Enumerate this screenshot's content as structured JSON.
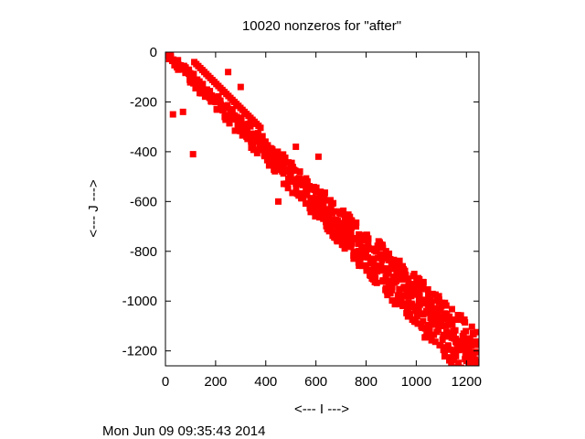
{
  "chart_data": {
    "type": "scatter",
    "title": "10020 nonzeros for \"after\"",
    "xlabel": "<--- I --->",
    "ylabel": "<--- J --->",
    "footer": "Mon Jun 09 09:35:43 2014",
    "xlim": [
      0,
      1250
    ],
    "ylim": [
      -1260,
      0
    ],
    "xticks": [
      0,
      200,
      400,
      600,
      800,
      1000,
      1200
    ],
    "yticks": [
      0,
      -200,
      -400,
      -600,
      -800,
      -1000,
      -1200
    ],
    "xtick_labels": [
      "0",
      "200",
      "400",
      "600",
      "800",
      "1000",
      "1200"
    ],
    "ytick_labels": [
      "0",
      "-200",
      "-400",
      "-600",
      "-800",
      "-1000",
      "-1200"
    ],
    "grid": false,
    "legend": "none",
    "marker": "square",
    "color": "#ff0000",
    "pattern": "banded sparse matrix: nonzeros clustered near the diagonal J = -I, widening with I",
    "points": {
      "x": [
        5,
        20,
        40,
        60,
        80,
        100,
        120,
        140,
        160,
        180,
        200,
        230,
        260,
        290,
        320,
        350,
        380,
        410,
        440,
        470,
        500,
        530,
        560,
        590,
        620,
        650,
        680,
        710,
        740,
        770,
        800,
        830,
        860,
        890,
        920,
        950,
        980,
        1010,
        1040,
        1070,
        1100,
        1130,
        1160,
        1190,
        1220,
        1245,
        30,
        70,
        110,
        150,
        250,
        300,
        450,
        520,
        610,
        700,
        760,
        850,
        940,
        1020,
        1080,
        1150,
        1200,
        1240
      ],
      "y": [
        -5,
        -20,
        -40,
        -60,
        -80,
        -100,
        -120,
        -140,
        -160,
        -180,
        -200,
        -230,
        -260,
        -290,
        -320,
        -350,
        -380,
        -410,
        -440,
        -470,
        -500,
        -530,
        -560,
        -590,
        -620,
        -650,
        -680,
        -710,
        -740,
        -770,
        -800,
        -830,
        -860,
        -890,
        -920,
        -950,
        -980,
        -1010,
        -1040,
        -1070,
        -1100,
        -1130,
        -1160,
        -1190,
        -1220,
        -1245,
        -250,
        -240,
        -410,
        -150,
        -80,
        -140,
        -600,
        -380,
        -420,
        -640,
        -700,
        -760,
        -1000,
        -1050,
        -1080,
        -1150,
        -1240,
        -1170
      ]
    }
  }
}
